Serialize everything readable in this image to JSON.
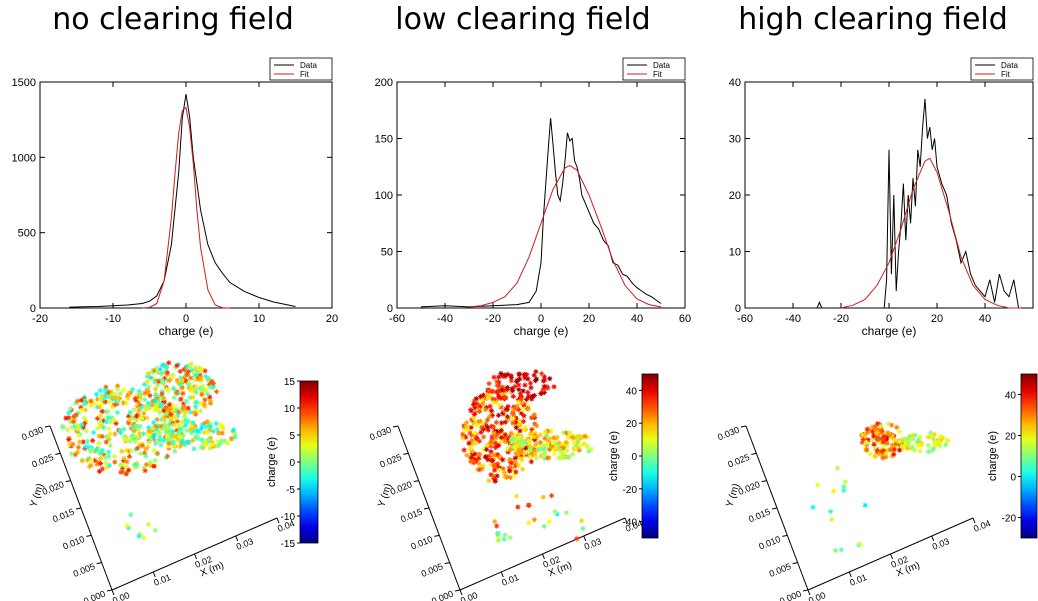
{
  "titles": [
    "no clearing field",
    "low clearing field",
    "high clearing field"
  ],
  "colors": {
    "data": "#000000",
    "fit": "#cc1f1f"
  },
  "chart_data": [
    {
      "type": "line",
      "title": "no clearing field",
      "xlabel": "charge (e)",
      "xlim": [
        -20,
        20
      ],
      "ylim": [
        0,
        1500
      ],
      "xticks": [
        -20,
        -10,
        0,
        10,
        20
      ],
      "yticks": [
        0,
        500,
        1000,
        1500
      ],
      "legend": "top-right",
      "series": [
        {
          "name": "Data",
          "x": [
            -16,
            -14,
            -12,
            -10,
            -8,
            -6,
            -5,
            -4,
            -3,
            -2,
            -1,
            -0.5,
            0,
            0.5,
            1,
            2,
            3,
            4,
            5,
            6,
            8,
            10,
            12,
            14,
            15
          ],
          "y": [
            5,
            8,
            10,
            15,
            20,
            30,
            45,
            80,
            180,
            420,
            900,
            1260,
            1420,
            1270,
            1000,
            650,
            420,
            300,
            230,
            170,
            110,
            70,
            40,
            20,
            10
          ]
        },
        {
          "name": "Fit",
          "x": [
            -6,
            -5,
            -4,
            -3,
            -2,
            -1.5,
            -1,
            -0.5,
            0,
            0.5,
            1,
            1.5,
            2,
            3,
            4,
            5,
            6
          ],
          "y": [
            0,
            3,
            30,
            180,
            600,
            900,
            1160,
            1310,
            1330,
            1200,
            960,
            650,
            400,
            120,
            20,
            2,
            0
          ]
        }
      ]
    },
    {
      "type": "line",
      "title": "low clearing field",
      "xlabel": "charge (e)",
      "xlim": [
        -60,
        60
      ],
      "ylim": [
        0,
        200
      ],
      "xticks": [
        -60,
        -40,
        -20,
        0,
        20,
        40,
        60
      ],
      "yticks": [
        0,
        50,
        100,
        150,
        200
      ],
      "legend": "top-right",
      "series": [
        {
          "name": "Data",
          "x": [
            -50,
            -40,
            -30,
            -20,
            -10,
            -5,
            -2,
            0,
            1,
            2,
            3,
            4,
            5,
            6,
            7,
            8,
            9,
            10,
            11,
            12,
            13,
            14,
            15,
            16,
            17,
            18,
            20,
            22,
            24,
            26,
            28,
            30,
            32,
            34,
            36,
            38,
            40,
            42,
            44,
            46,
            48,
            50
          ],
          "y": [
            1,
            2,
            1,
            2,
            3,
            5,
            15,
            40,
            80,
            110,
            140,
            168,
            145,
            120,
            100,
            95,
            110,
            130,
            155,
            148,
            150,
            130,
            125,
            115,
            100,
            95,
            85,
            75,
            70,
            60,
            55,
            40,
            38,
            30,
            28,
            22,
            18,
            15,
            12,
            10,
            7,
            4
          ]
        },
        {
          "name": "Fit",
          "x": [
            -30,
            -25,
            -20,
            -15,
            -10,
            -5,
            0,
            5,
            10,
            12,
            15,
            20,
            25,
            30,
            35,
            40,
            45,
            50
          ],
          "y": [
            1,
            2,
            5,
            10,
            22,
            45,
            75,
            105,
            124,
            126,
            122,
            100,
            72,
            42,
            20,
            8,
            3,
            1
          ]
        }
      ]
    },
    {
      "type": "line",
      "title": "high clearing field",
      "xlabel": "charge (e)",
      "xlim": [
        -60,
        60
      ],
      "ylim": [
        0,
        40
      ],
      "xticks": [
        -60,
        -40,
        -20,
        0,
        20,
        40
      ],
      "yticks": [
        0,
        10,
        20,
        30,
        40
      ],
      "legend": "top-right",
      "series": [
        {
          "name": "Data",
          "x": [
            -30,
            -29,
            -28,
            -5,
            -2,
            -1,
            0,
            1,
            2,
            3,
            4,
            5,
            6,
            7,
            8,
            9,
            10,
            11,
            12,
            13,
            14,
            15,
            16,
            17,
            18,
            19,
            20,
            22,
            24,
            26,
            28,
            30,
            32,
            34,
            36,
            38,
            40,
            42,
            44,
            46,
            48,
            50,
            52,
            54
          ],
          "y": [
            0,
            1,
            0,
            0,
            0,
            5,
            28,
            6,
            20,
            3,
            10,
            15,
            22,
            12,
            20,
            15,
            23,
            18,
            28,
            25,
            32,
            37,
            30,
            32,
            28,
            30,
            25,
            22,
            20,
            15,
            12,
            8,
            10,
            6,
            4,
            3,
            2,
            5,
            1,
            6,
            3,
            2,
            5,
            0
          ]
        },
        {
          "name": "Fit",
          "x": [
            -20,
            -15,
            -10,
            -5,
            0,
            5,
            10,
            15,
            17,
            20,
            25,
            30,
            35,
            40,
            45,
            50,
            55
          ],
          "y": [
            0,
            0.5,
            1.5,
            4,
            8,
            14,
            21,
            26,
            26.5,
            24,
            17,
            9,
            4,
            1.5,
            0.5,
            0,
            0
          ]
        }
      ]
    },
    {
      "type": "scatter",
      "xlabel": "X (m)",
      "ylabel": "Y (m)",
      "colorbar_label": "charge (e)",
      "xticks": [
        "0.00",
        "0.01",
        "0.02",
        "0.03",
        "0.04"
      ],
      "yticks": [
        "0.000",
        "0.005",
        "0.010",
        "0.015",
        "0.020",
        "0.025",
        "0.030"
      ],
      "clim": [
        -15,
        15
      ],
      "colorbar_ticks": [
        15,
        10,
        5,
        0,
        -5,
        -10,
        -15
      ]
    },
    {
      "type": "scatter",
      "xlabel": "X (m)",
      "ylabel": "Y (m)",
      "colorbar_label": "charge (e)",
      "xticks": [
        "0.00",
        "0.01",
        "0.02",
        "0.03",
        "0.04"
      ],
      "yticks": [
        "0.000",
        "0.005",
        "0.010",
        "0.015",
        "0.020",
        "0.025",
        "0.030"
      ],
      "clim": [
        -50,
        50
      ],
      "colorbar_ticks": [
        40,
        20,
        0,
        -20,
        -40
      ]
    },
    {
      "type": "scatter",
      "xlabel": "X (m)",
      "ylabel": "Y (m)",
      "colorbar_label": "charge (e)",
      "xticks": [
        "0.00",
        "0.01",
        "0.02",
        "0.03",
        "0.04"
      ],
      "yticks": [
        "0.000",
        "0.005",
        "0.010",
        "0.015",
        "0.020",
        "0.025",
        "0.030"
      ],
      "clim": [
        -30,
        50
      ],
      "colorbar_ticks": [
        40,
        20,
        0,
        -20
      ]
    }
  ]
}
